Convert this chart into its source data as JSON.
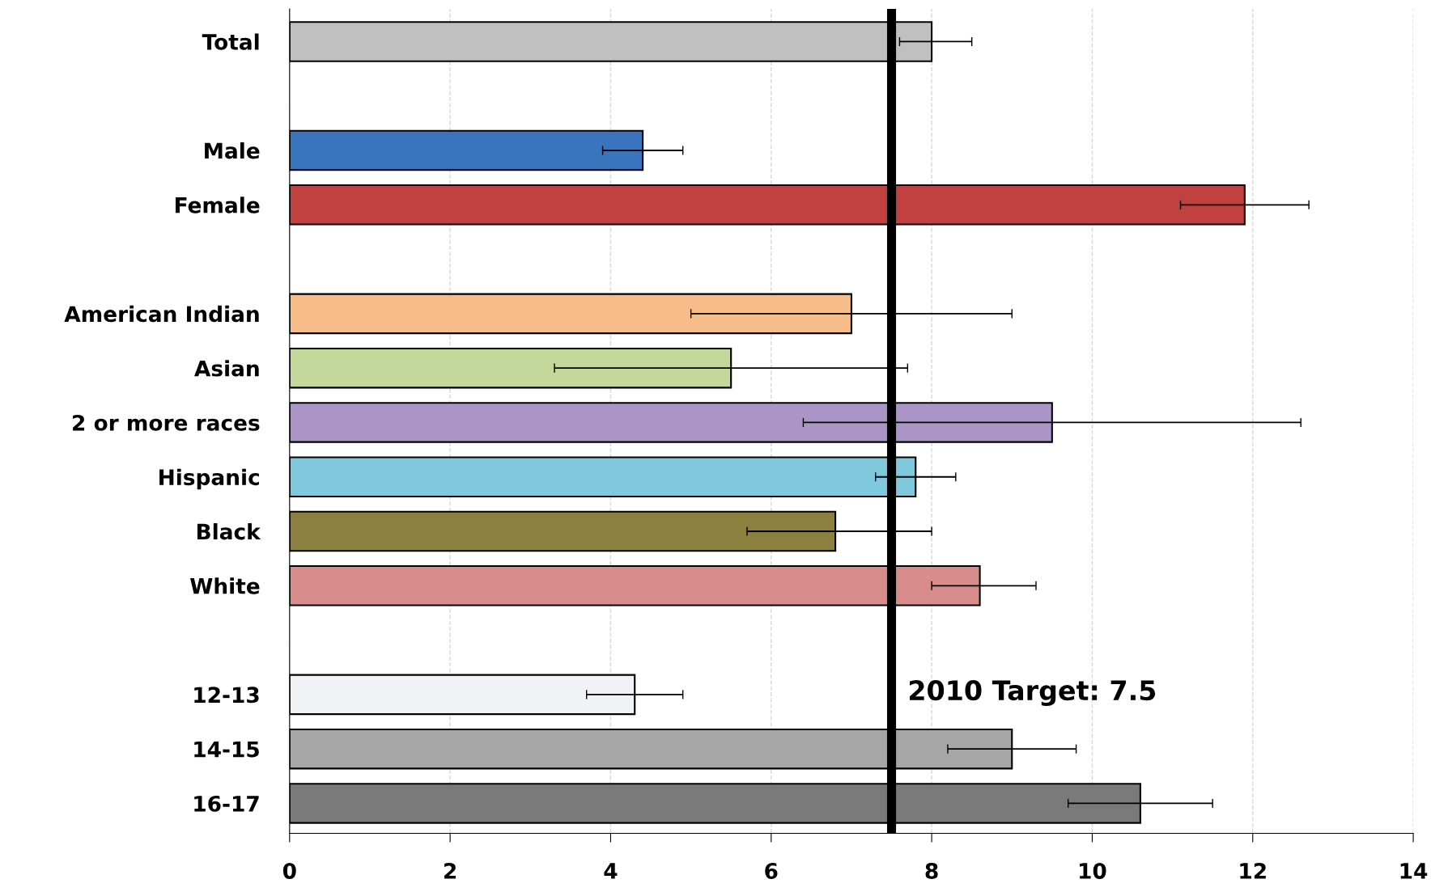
{
  "chart_data": {
    "type": "bar",
    "orientation": "horizontal",
    "categories": [
      "Total",
      null,
      "Male",
      "Female",
      null,
      "American Indian",
      "Asian",
      "2 or more races",
      "Hispanic",
      "Black",
      "White",
      null,
      "12-13",
      "14-15",
      "16-17"
    ],
    "values": [
      8.0,
      null,
      4.4,
      11.9,
      null,
      7.0,
      5.5,
      9.5,
      7.8,
      6.8,
      8.6,
      null,
      4.3,
      9.0,
      10.6
    ],
    "colors": [
      "#c0c0c0",
      null,
      "#3a74bc",
      "#c0413f",
      null,
      "#f6bd8a",
      "#c3d89a",
      "#ab94c6",
      "#80c8dc",
      "#8c8040",
      "#d98c8c",
      null,
      "#f0f2f6",
      "#a6a6a6",
      "#7a7a7a"
    ],
    "errors": [
      [
        7.6,
        8.5
      ],
      null,
      [
        3.9,
        4.9
      ],
      [
        11.1,
        12.7
      ],
      null,
      [
        5.0,
        9.0
      ],
      [
        3.3,
        7.7
      ],
      [
        6.4,
        12.6
      ],
      [
        7.3,
        8.3
      ],
      [
        5.7,
        8.0
      ],
      [
        8.0,
        9.3
      ],
      null,
      [
        3.7,
        4.9
      ],
      [
        8.2,
        9.8
      ],
      [
        9.7,
        11.5
      ]
    ],
    "xlim": [
      0,
      14
    ],
    "xticks": [
      0,
      2,
      4,
      6,
      8,
      10,
      12,
      14
    ],
    "grid": "x",
    "ref_lines": [
      {
        "axis": "x",
        "value": 7.5,
        "label": "2010 Target: 7.5",
        "color": "#000000"
      }
    ]
  }
}
